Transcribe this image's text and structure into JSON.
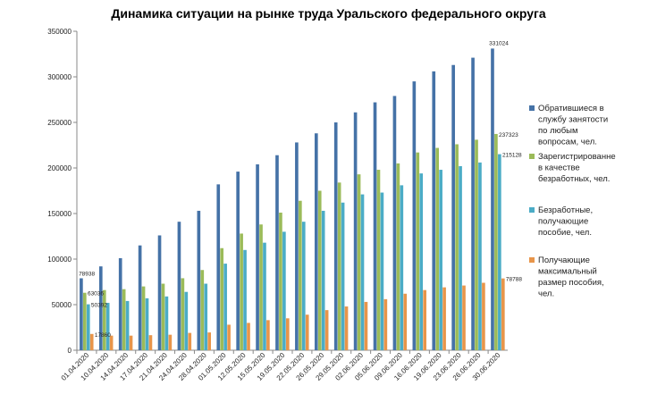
{
  "chart_data": {
    "type": "bar",
    "title": "Динамика ситуации  на рынке труда Уральского федерального округа",
    "xlabel": "",
    "ylabel": "",
    "ylim": [
      0,
      350000
    ],
    "y_ticks": [
      0,
      50000,
      100000,
      150000,
      200000,
      250000,
      300000,
      350000
    ],
    "grid": false,
    "legend_position": "right",
    "categories": [
      "01.04.2020",
      "10.04.2020",
      "14.04.2020",
      "17.04.2020",
      "21.04.2020",
      "24.04.2020",
      "28.04.2020",
      "01.05.2020",
      "12.05.2020",
      "15.05.2020",
      "19.05.2020",
      "22.05.2020",
      "26.05.2020",
      "29.05.2020",
      "02.06.2020",
      "05.06.2020",
      "09.06.2020",
      "16.06.2020",
      "19.06.2020",
      "23.06.2020",
      "26.06.2020",
      "30.06.2020"
    ],
    "series": [
      {
        "name": "Обратившиеся в службу занятости по любым вопросам, чел.",
        "legend_lines": [
          "Обратившиеся в",
          "службу занятости",
          "по любым",
          "вопросам, чел."
        ],
        "color": "#4572A7",
        "values": [
          78938,
          92000,
          101000,
          115000,
          126000,
          141000,
          153000,
          182000,
          196000,
          204000,
          214000,
          228000,
          238000,
          250000,
          261000,
          272000,
          279000,
          295000,
          306000,
          313000,
          321000,
          331024
        ],
        "labels": [
          {
            "index": 0,
            "text": "78938"
          },
          {
            "index": 21,
            "text": "331024"
          }
        ]
      },
      {
        "name": "Зарегистрированне в качестве безработных, чел.",
        "legend_lines": [
          "Зарегистрированне",
          "в качестве",
          "безработных, чел."
        ],
        "color": "#9BBB59",
        "values": [
          63036,
          66000,
          67000,
          70000,
          73000,
          79000,
          88000,
          112000,
          128000,
          138000,
          151000,
          164000,
          175000,
          184000,
          193000,
          198000,
          205000,
          217000,
          222000,
          226000,
          231000,
          237323
        ],
        "labels": [
          {
            "index": 0,
            "text": "63036"
          },
          {
            "index": 21,
            "text": "237323"
          }
        ]
      },
      {
        "name": "Безработные, получающие пособие, чел.",
        "legend_lines": [
          "Безработные,",
          "получающие",
          "пособие, чел."
        ],
        "color": "#4BACC6",
        "values": [
          50392,
          52000,
          54000,
          57000,
          59000,
          64000,
          73000,
          95000,
          110000,
          118000,
          130000,
          141000,
          153000,
          162000,
          171000,
          173000,
          181000,
          194000,
          198000,
          202000,
          206000,
          215128
        ],
        "labels": [
          {
            "index": 0,
            "text": "50392"
          },
          {
            "index": 21,
            "text": "215128"
          }
        ]
      },
      {
        "name": "Получающие максимальный размер пособия, чел.",
        "legend_lines": [
          "Получающие",
          "максимальный",
          "размер пособия,",
          "чел."
        ],
        "color": "#E8954A",
        "values": [
          17860,
          16000,
          16000,
          16500,
          17000,
          19000,
          19500,
          28000,
          30000,
          33000,
          35000,
          39000,
          44000,
          48000,
          53000,
          56000,
          62000,
          66000,
          69000,
          71000,
          74000,
          78788
        ],
        "labels": [
          {
            "index": 0,
            "text": "17860"
          },
          {
            "index": 21,
            "text": "78788"
          }
        ]
      }
    ]
  }
}
